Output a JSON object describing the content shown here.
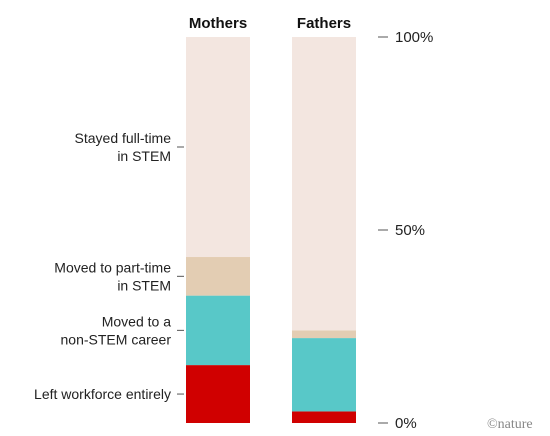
{
  "chart_data": {
    "type": "bar",
    "stacked": true,
    "normalized": true,
    "categories": [
      "Mothers",
      "Fathers"
    ],
    "series": [
      {
        "name": "Left workforce entirely",
        "values": [
          15,
          3
        ],
        "color": "#d00000"
      },
      {
        "name": "Moved to a non-STEM career",
        "values": [
          18,
          19
        ],
        "color": "#58c8c8"
      },
      {
        "name": "Moved to part-time in STEM",
        "values": [
          10,
          2
        ],
        "color": "#e3cdb3"
      },
      {
        "name": "Stayed full-time in STEM",
        "values": [
          57,
          76
        ],
        "color": "#f3e6e0"
      }
    ],
    "category_labels": [
      [
        "Left workforce entirely"
      ],
      [
        "Moved to a",
        "non-STEM career"
      ],
      [
        "Moved to part-time",
        "in STEM"
      ],
      [
        "Stayed full-time",
        "in STEM"
      ]
    ],
    "ylim": [
      0,
      100
    ],
    "yticks": [
      {
        "value": 0,
        "label": "0%"
      },
      {
        "value": 50,
        "label": "50%"
      },
      {
        "value": 100,
        "label": "100%"
      }
    ],
    "grid": false,
    "legend": "labels-left"
  },
  "credit": "©nature"
}
